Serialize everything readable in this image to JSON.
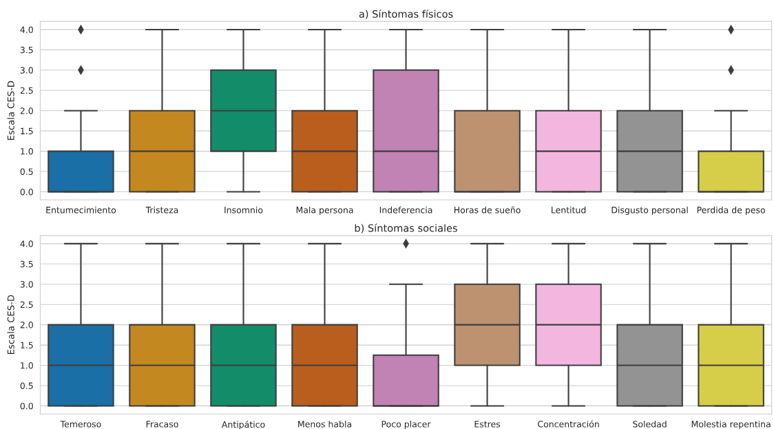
{
  "chart_data": [
    {
      "type": "box",
      "title": "a) Síntomas físicos",
      "ylabel": "Escala CES-D",
      "categories": [
        "Entumecimiento",
        "Tristeza",
        "Insomnio",
        "Mala persona",
        "Indeferencia",
        "Horas de sueño",
        "Lentitud",
        "Disgusto personal",
        "Perdida de peso"
      ],
      "colors": [
        "#1a6fa6",
        "#c38820",
        "#138c6a",
        "#b95e1d",
        "#c182b4",
        "#bc9270",
        "#f3b6df",
        "#939393",
        "#d6cd49"
      ],
      "boxes": [
        {
          "low": 0,
          "q1": 0,
          "median": 0,
          "q3": 1,
          "high": 2,
          "outliers": [
            3,
            4
          ]
        },
        {
          "low": 0,
          "q1": 0,
          "median": 1,
          "q3": 2,
          "high": 4
        },
        {
          "low": 0,
          "q1": 1,
          "median": 2,
          "q3": 3,
          "high": 4
        },
        {
          "low": 0,
          "q1": 0,
          "median": 1,
          "q3": 2,
          "high": 4
        },
        {
          "low": 0,
          "q1": 0,
          "median": 1,
          "q3": 3,
          "high": 4
        },
        {
          "low": 0,
          "q1": 0,
          "median": 0,
          "q3": 2,
          "high": 4
        },
        {
          "low": 0,
          "q1": 0,
          "median": 1,
          "q3": 2,
          "high": 4
        },
        {
          "low": 0,
          "q1": 0,
          "median": 1,
          "q3": 2,
          "high": 4
        },
        {
          "low": 0,
          "q1": 0,
          "median": 0,
          "q3": 1,
          "high": 2,
          "outliers": [
            3,
            4
          ]
        }
      ],
      "ylim": [
        -0.2,
        4.2
      ],
      "yticks": [
        {
          "value": 0,
          "label": "0.0"
        },
        {
          "value": 0.5,
          "label": "0.5"
        },
        {
          "value": 1,
          "label": "1.0"
        },
        {
          "value": 1.5,
          "label": "1.5"
        },
        {
          "value": 2,
          "label": "2.0"
        },
        {
          "value": 2.5,
          "label": "2.5"
        },
        {
          "value": 3,
          "label": "3.0"
        },
        {
          "value": 3.5,
          "label": "3.5"
        },
        {
          "value": 4,
          "label": "4.0"
        }
      ],
      "grid": "y",
      "marker": "diamond"
    },
    {
      "type": "box",
      "title": "b) Síntomas sociales",
      "ylabel": "Escala CES-D",
      "categories": [
        "Temeroso",
        "Fracaso",
        "Antipático",
        "Menos habla",
        "Poco placer",
        "Estres",
        "Concentración",
        "Soledad",
        "Molestia repentina"
      ],
      "colors": [
        "#1a6fa6",
        "#c38820",
        "#138c6a",
        "#b95e1d",
        "#c182b4",
        "#bc9270",
        "#f3b6df",
        "#939393",
        "#d6cd49"
      ],
      "boxes": [
        {
          "low": 0,
          "q1": 0,
          "median": 1,
          "q3": 2,
          "high": 4
        },
        {
          "low": 0,
          "q1": 0,
          "median": 1,
          "q3": 2,
          "high": 4
        },
        {
          "low": 0,
          "q1": 0,
          "median": 1,
          "q3": 2,
          "high": 4
        },
        {
          "low": 0,
          "q1": 0,
          "median": 1,
          "q3": 2,
          "high": 4
        },
        {
          "low": 0,
          "q1": 0,
          "median": 0,
          "q3": 1.25,
          "high": 3,
          "outliers": [
            4
          ]
        },
        {
          "low": 0,
          "q1": 1,
          "median": 2,
          "q3": 3,
          "high": 4
        },
        {
          "low": 0,
          "q1": 1,
          "median": 2,
          "q3": 3,
          "high": 4
        },
        {
          "low": 0,
          "q1": 0,
          "median": 1,
          "q3": 2,
          "high": 4
        },
        {
          "low": 0,
          "q1": 0,
          "median": 1,
          "q3": 2,
          "high": 4
        }
      ],
      "ylim": [
        -0.2,
        4.2
      ],
      "yticks": [
        {
          "value": 0,
          "label": "0.0"
        },
        {
          "value": 0.5,
          "label": "0.5"
        },
        {
          "value": 1,
          "label": "1.0"
        },
        {
          "value": 1.5,
          "label": "1.5"
        },
        {
          "value": 2,
          "label": "2.0"
        },
        {
          "value": 2.5,
          "label": "2.5"
        },
        {
          "value": 3,
          "label": "3.0"
        },
        {
          "value": 3.5,
          "label": "3.5"
        },
        {
          "value": 4,
          "label": "4.0"
        }
      ],
      "grid": "y",
      "marker": "diamond"
    }
  ]
}
